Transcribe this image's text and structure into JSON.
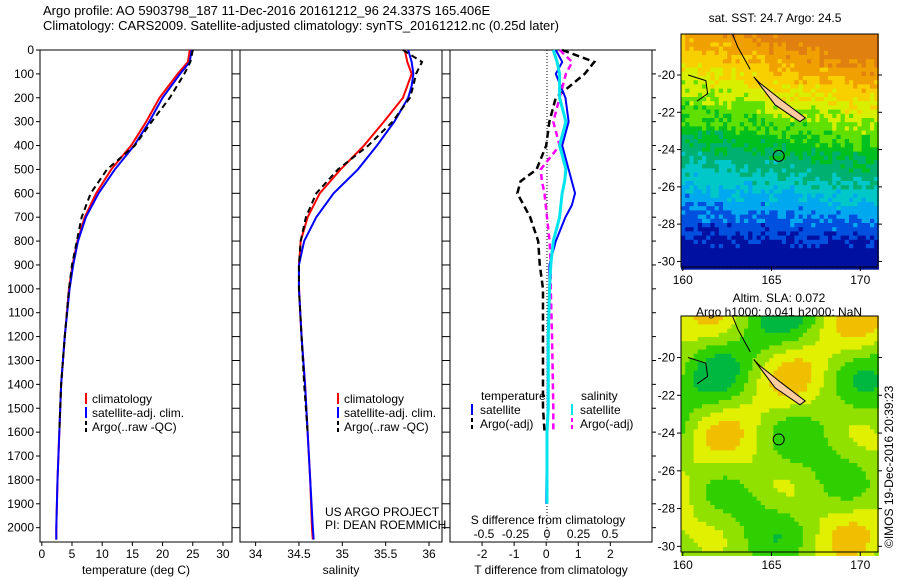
{
  "title_line1": "Argo profile: AO 5903798_187 11-Dec-2016 20161212_96 24.337S 165.406E",
  "title_line2": "Climatology: CARS2009. Satellite-adjusted climatology: synTS_20161212.nc (0.25d later)",
  "side_label": "©IMOS 19-Dec-2016 20:39:23",
  "project_line1": "US ARGO PROJECT",
  "project_line2": "PI: DEAN ROEMMICH",
  "colors": {
    "climatology": "#ff0000",
    "satellite": "#0000ff",
    "argo": "#000000",
    "sat_salinity": "#00e5ee",
    "argo_salinity": "#ff00ff"
  },
  "chart_data": [
    {
      "type": "line",
      "name": "temperature",
      "xlabel": "temperature (deg C)",
      "xlim": [
        -0.3,
        31.5
      ],
      "ylim": [
        2060,
        0
      ],
      "xticks": [
        0,
        5,
        10,
        15,
        20,
        25,
        30
      ],
      "yticks": [
        0,
        100,
        200,
        300,
        400,
        500,
        600,
        700,
        800,
        900,
        1000,
        1100,
        1200,
        1300,
        1400,
        1500,
        1600,
        1700,
        1800,
        1900,
        2000
      ],
      "legend": [
        "climatology",
        "satellite-adj. clim.",
        "Argo(..raw -QC)"
      ],
      "depth": [
        0,
        50,
        100,
        200,
        300,
        400,
        500,
        600,
        700,
        800,
        900,
        1000,
        1200,
        1400,
        1600,
        1800,
        2000,
        2050
      ],
      "series": [
        {
          "name": "climatology",
          "values": [
            24.5,
            24.2,
            22.5,
            19.5,
            17.3,
            14.8,
            11.5,
            9.0,
            7.1,
            5.9,
            5.1,
            4.5,
            3.8,
            3.2,
            2.9,
            2.6,
            2.4,
            2.4
          ]
        },
        {
          "name": "satellite-adj. clim.",
          "values": [
            24.8,
            24.5,
            22.9,
            20.0,
            17.8,
            15.3,
            12.1,
            9.4,
            7.3,
            6.0,
            5.2,
            4.6,
            3.8,
            3.2,
            2.9,
            2.6,
            2.4,
            2.4
          ]
        },
        {
          "name": "Argo(..raw -QC)",
          "values": [
            25.0,
            24.6,
            23.6,
            21.2,
            18.2,
            15.4,
            10.8,
            8.1,
            6.6,
            5.8,
            5.0,
            4.5,
            3.8,
            3.2,
            2.9
          ]
        }
      ]
    },
    {
      "type": "line",
      "name": "salinity",
      "xlabel": "salinity",
      "xlim": [
        33.82,
        36.15
      ],
      "ylim": [
        2060,
        0
      ],
      "xticks": [
        34,
        34.5,
        35,
        35.5,
        36
      ],
      "legend": [
        "climatology",
        "satellite-adj. clim.",
        "Argo(..raw -QC)"
      ],
      "depth": [
        0,
        50,
        100,
        150,
        200,
        300,
        400,
        500,
        600,
        700,
        800,
        900,
        1000,
        1200,
        1400,
        1600,
        1800,
        2000,
        2050
      ],
      "series": [
        {
          "name": "climatology",
          "values": [
            35.72,
            35.75,
            35.8,
            35.75,
            35.7,
            35.48,
            35.25,
            34.98,
            34.74,
            34.6,
            34.52,
            34.5,
            34.5,
            34.53,
            34.57,
            34.6,
            34.63,
            34.65,
            34.66
          ]
        },
        {
          "name": "satellite-adj. clim.",
          "values": [
            35.76,
            35.8,
            35.82,
            35.8,
            35.76,
            35.6,
            35.4,
            35.18,
            34.9,
            34.7,
            34.56,
            34.5,
            34.5,
            34.53,
            34.57,
            34.6,
            34.63,
            34.66,
            34.67
          ]
        },
        {
          "name": "Argo(..raw -QC)",
          "values": [
            35.7,
            35.92,
            35.85,
            35.82,
            35.78,
            35.58,
            35.3,
            34.95,
            34.7,
            34.58,
            34.52,
            34.5,
            34.5,
            34.53,
            34.56,
            34.6
          ]
        }
      ]
    },
    {
      "type": "line",
      "name": "difference",
      "xlabel": "T difference from climatology",
      "xlim": [
        -3.0,
        3.3
      ],
      "ylim": [
        2060,
        0
      ],
      "xticks": [
        -2,
        -1,
        0,
        1,
        2
      ],
      "s_label": "S difference from climatology",
      "s_xticks": [
        "-0.5",
        "-0.25",
        "0",
        "0.25",
        "0.5"
      ],
      "legend": {
        "temperature_title": "temperature",
        "salinity_title": "salinity",
        "items": [
          "satellite",
          "Argo(-adj)",
          "satellite",
          "Argo(-adj)"
        ]
      },
      "depth": [
        0,
        50,
        100,
        200,
        300,
        400,
        500,
        550,
        600,
        650,
        700,
        800,
        900,
        1000,
        1200,
        1500,
        1600,
        1900
      ],
      "series": [
        {
          "name": "T satellite",
          "values": [
            0.3,
            0.5,
            0.3,
            0.6,
            0.7,
            0.5,
            0.7,
            0.8,
            0.9,
            0.8,
            0.6,
            0.3,
            0.1,
            0.1,
            0.05,
            0.05,
            0.02,
            0.0
          ]
        },
        {
          "name": "T Argo(-adj)",
          "values": [
            0.5,
            1.5,
            1.2,
            0.3,
            0.1,
            0.0,
            -0.3,
            -0.8,
            -0.9,
            -0.7,
            -0.5,
            -0.25,
            -0.2,
            -0.1,
            -0.1,
            -0.1,
            -0.05
          ]
        },
        {
          "name": "S satellite",
          "values": [
            0.05,
            0.08,
            0.1,
            0.1,
            0.15,
            0.1,
            0.15,
            0.14,
            0.12,
            0.11,
            0.1,
            0.05,
            0.03,
            0.02,
            0.01,
            0.01,
            0.0,
            0.0
          ]
        },
        {
          "name": "S Argo(-adj)",
          "values": [
            0.1,
            0.2,
            0.15,
            0.1,
            0.05,
            0.1,
            -0.05,
            -0.04,
            -0.02,
            -0.01,
            0.0,
            0.02,
            0.03,
            0.03,
            0.04,
            0.05,
            0.05
          ]
        }
      ]
    },
    {
      "type": "heatmap",
      "name": "sst_map",
      "title": "sat. SST: 24.7 Argo: 24.5",
      "xlim": [
        159.9,
        171
      ],
      "ylim": [
        -30.3,
        -17.8
      ],
      "xticks": [
        160,
        165,
        170
      ],
      "yticks": [
        -20,
        -22,
        -24,
        -26,
        -28,
        -30
      ],
      "marker": {
        "lon": 165.406,
        "lat": -24.337
      }
    },
    {
      "type": "heatmap",
      "name": "sla_map",
      "title": "Altim. SLA: 0.072",
      "subtitle": "Argo h1000: 0.041 h2000: NaN",
      "xlim": [
        159.9,
        171
      ],
      "ylim": [
        -30.3,
        -17.8
      ],
      "xticks": [
        160,
        165,
        170
      ],
      "yticks": [
        -20,
        -22,
        -24,
        -26,
        -28,
        -30
      ],
      "marker": {
        "lon": 165.406,
        "lat": -24.337
      }
    }
  ]
}
